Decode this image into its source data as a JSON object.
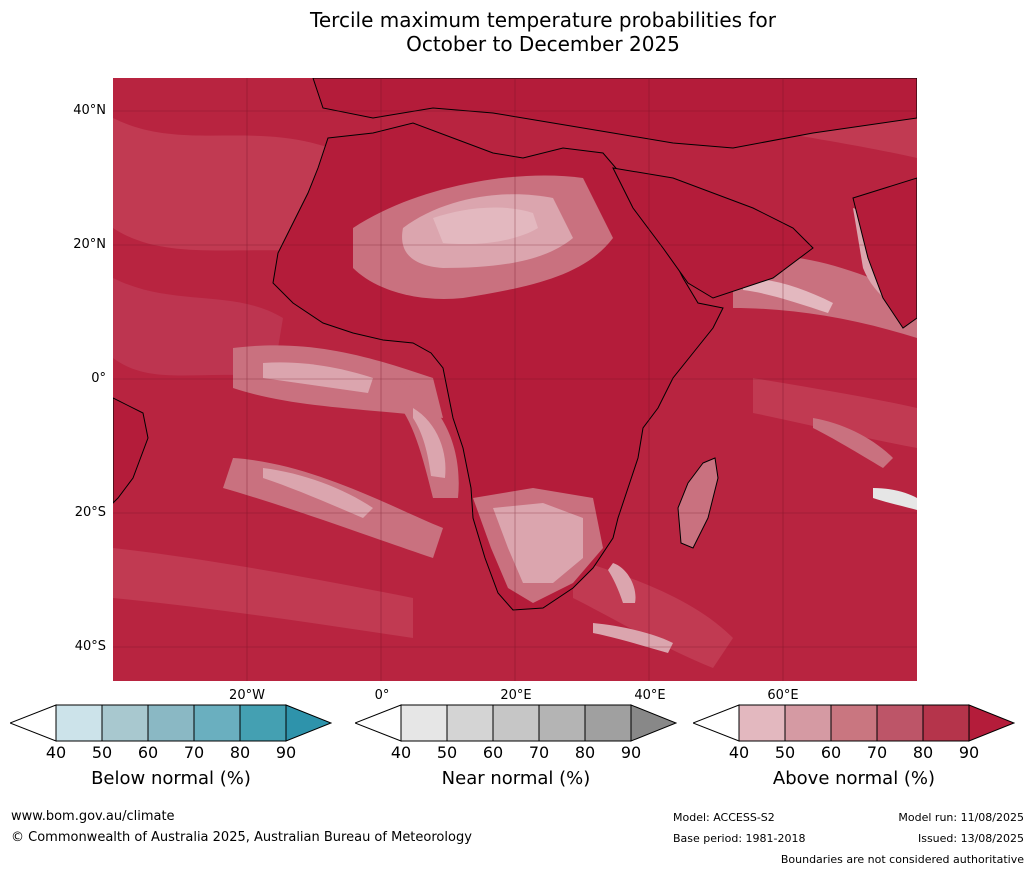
{
  "title_line1": "Tercile maximum temperature probabilities for",
  "title_line2": "October to December 2025",
  "map": {
    "lat_labels": [
      "40°N",
      "20°N",
      "0°",
      "20°S",
      "40°S"
    ],
    "lon_labels": [
      "20°W",
      "0°",
      "20°E",
      "40°E",
      "60°E"
    ],
    "land_color": "#b41c3a",
    "ocean_base": "#b82440"
  },
  "colorbars": [
    {
      "label": "Below normal (%)",
      "ticks": [
        "40",
        "50",
        "60",
        "70",
        "80",
        "90"
      ],
      "colors": [
        "#ffffff",
        "#cce3ea",
        "#a8c8cf",
        "#8ab8c4",
        "#6aafbf",
        "#44a0b2",
        "#2e93ab"
      ]
    },
    {
      "label": "Near normal (%)",
      "ticks": [
        "40",
        "50",
        "60",
        "70",
        "80",
        "90"
      ],
      "colors": [
        "#ffffff",
        "#e6e6e6",
        "#d4d4d4",
        "#c6c6c6",
        "#b4b4b4",
        "#a0a0a0",
        "#888888"
      ]
    },
    {
      "label": "Above normal (%)",
      "ticks": [
        "40",
        "50",
        "60",
        "70",
        "80",
        "90"
      ],
      "colors": [
        "#ffffff",
        "#e3b8bf",
        "#d59aa3",
        "#c97680",
        "#bd5568",
        "#b5344b",
        "#b41c3a"
      ]
    }
  ],
  "footer": {
    "url": "www.bom.gov.au/climate",
    "copyright": "© Commonwealth of Australia 2025, Australian Bureau of Meteorology",
    "model": "Model: ACCESS-S2",
    "base_period": "Base period: 1981-2018",
    "model_run": "Model run: 11/08/2025",
    "issued": "Issued: 13/08/2025",
    "disclaimer": "Boundaries are not considered authoritative"
  }
}
